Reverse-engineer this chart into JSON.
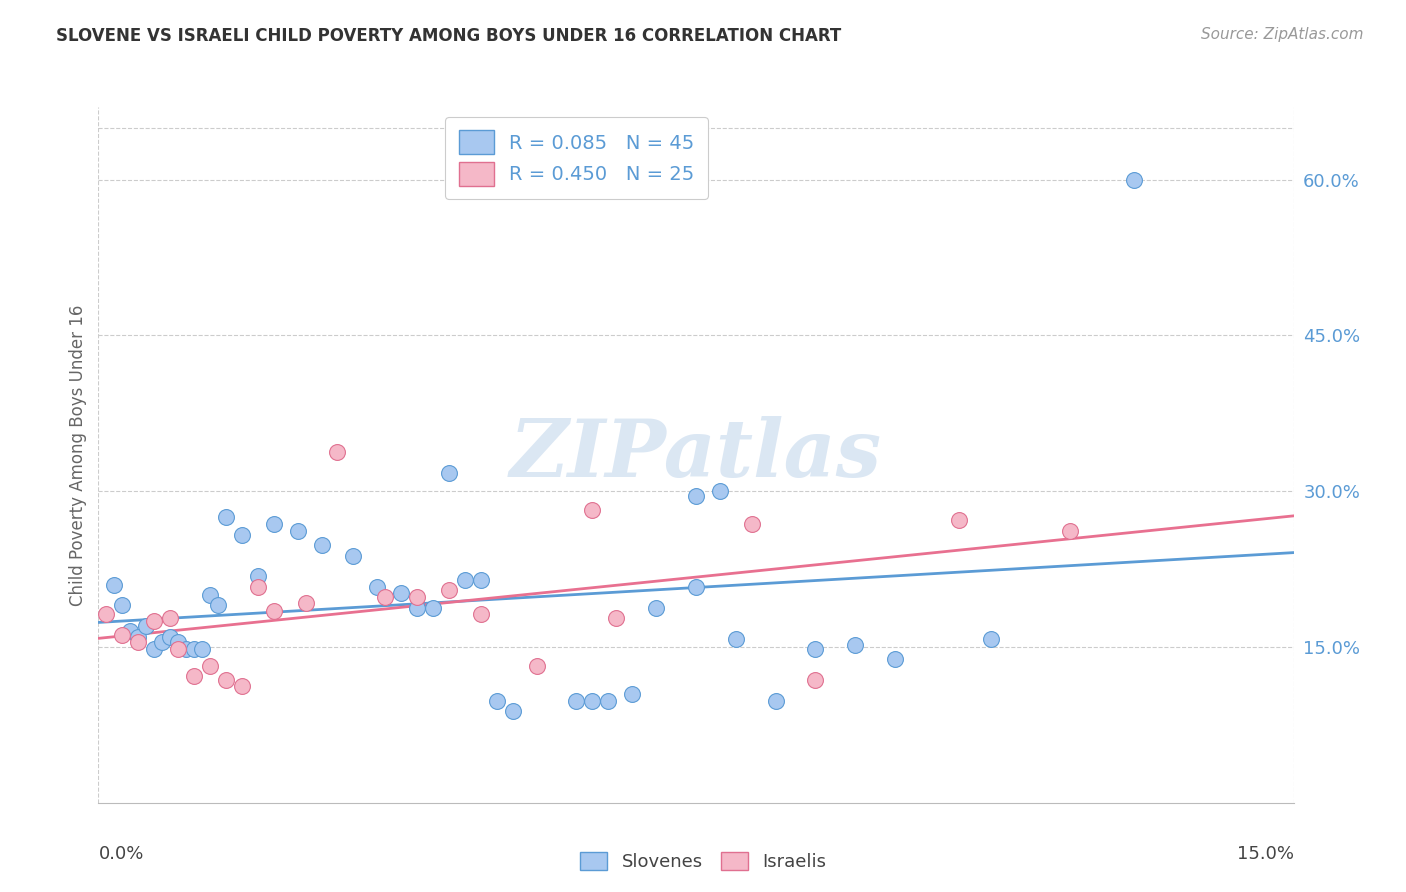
{
  "title": "SLOVENE VS ISRAELI CHILD POVERTY AMONG BOYS UNDER 16 CORRELATION CHART",
  "source": "Source: ZipAtlas.com",
  "ylabel": "Child Poverty Among Boys Under 16",
  "ytick_labels": [
    "15.0%",
    "30.0%",
    "45.0%",
    "60.0%"
  ],
  "ytick_values": [
    0.15,
    0.3,
    0.45,
    0.6
  ],
  "xlim": [
    0.0,
    0.15
  ],
  "ylim": [
    0.0,
    0.67
  ],
  "color_slovene": "#a8c8f0",
  "color_israeli": "#f5b8c8",
  "color_slovene_line": "#5B9BD5",
  "color_israeli_line": "#e87090",
  "color_slovene_edge": "#5B9BD5",
  "color_israeli_edge": "#e07090",
  "watermark_color": "#ccddef",
  "grid_color": "#cccccc",
  "slovene_x": [
    0.002,
    0.003,
    0.004,
    0.005,
    0.006,
    0.007,
    0.008,
    0.009,
    0.01,
    0.011,
    0.012,
    0.013,
    0.014,
    0.015,
    0.016,
    0.018,
    0.02,
    0.022,
    0.025,
    0.028,
    0.032,
    0.035,
    0.038,
    0.04,
    0.042,
    0.044,
    0.046,
    0.048,
    0.05,
    0.052,
    0.06,
    0.062,
    0.064,
    0.067,
    0.07,
    0.075,
    0.075,
    0.078,
    0.08,
    0.085,
    0.09,
    0.095,
    0.1,
    0.112,
    0.13
  ],
  "slovene_y": [
    0.21,
    0.19,
    0.165,
    0.16,
    0.17,
    0.148,
    0.155,
    0.16,
    0.155,
    0.148,
    0.148,
    0.148,
    0.2,
    0.19,
    0.275,
    0.258,
    0.218,
    0.268,
    0.262,
    0.248,
    0.238,
    0.208,
    0.202,
    0.188,
    0.188,
    0.318,
    0.215,
    0.215,
    0.098,
    0.088,
    0.098,
    0.098,
    0.098,
    0.105,
    0.188,
    0.208,
    0.295,
    0.3,
    0.158,
    0.098,
    0.148,
    0.152,
    0.138,
    0.158,
    0.6
  ],
  "israeli_x": [
    0.001,
    0.003,
    0.005,
    0.007,
    0.009,
    0.01,
    0.012,
    0.014,
    0.016,
    0.018,
    0.02,
    0.022,
    0.026,
    0.03,
    0.036,
    0.04,
    0.044,
    0.048,
    0.055,
    0.062,
    0.065,
    0.082,
    0.09,
    0.108,
    0.122
  ],
  "israeli_y": [
    0.182,
    0.162,
    0.155,
    0.175,
    0.178,
    0.148,
    0.122,
    0.132,
    0.118,
    0.112,
    0.208,
    0.185,
    0.192,
    0.338,
    0.198,
    0.198,
    0.205,
    0.182,
    0.132,
    0.282,
    0.178,
    0.268,
    0.118,
    0.272,
    0.262
  ]
}
